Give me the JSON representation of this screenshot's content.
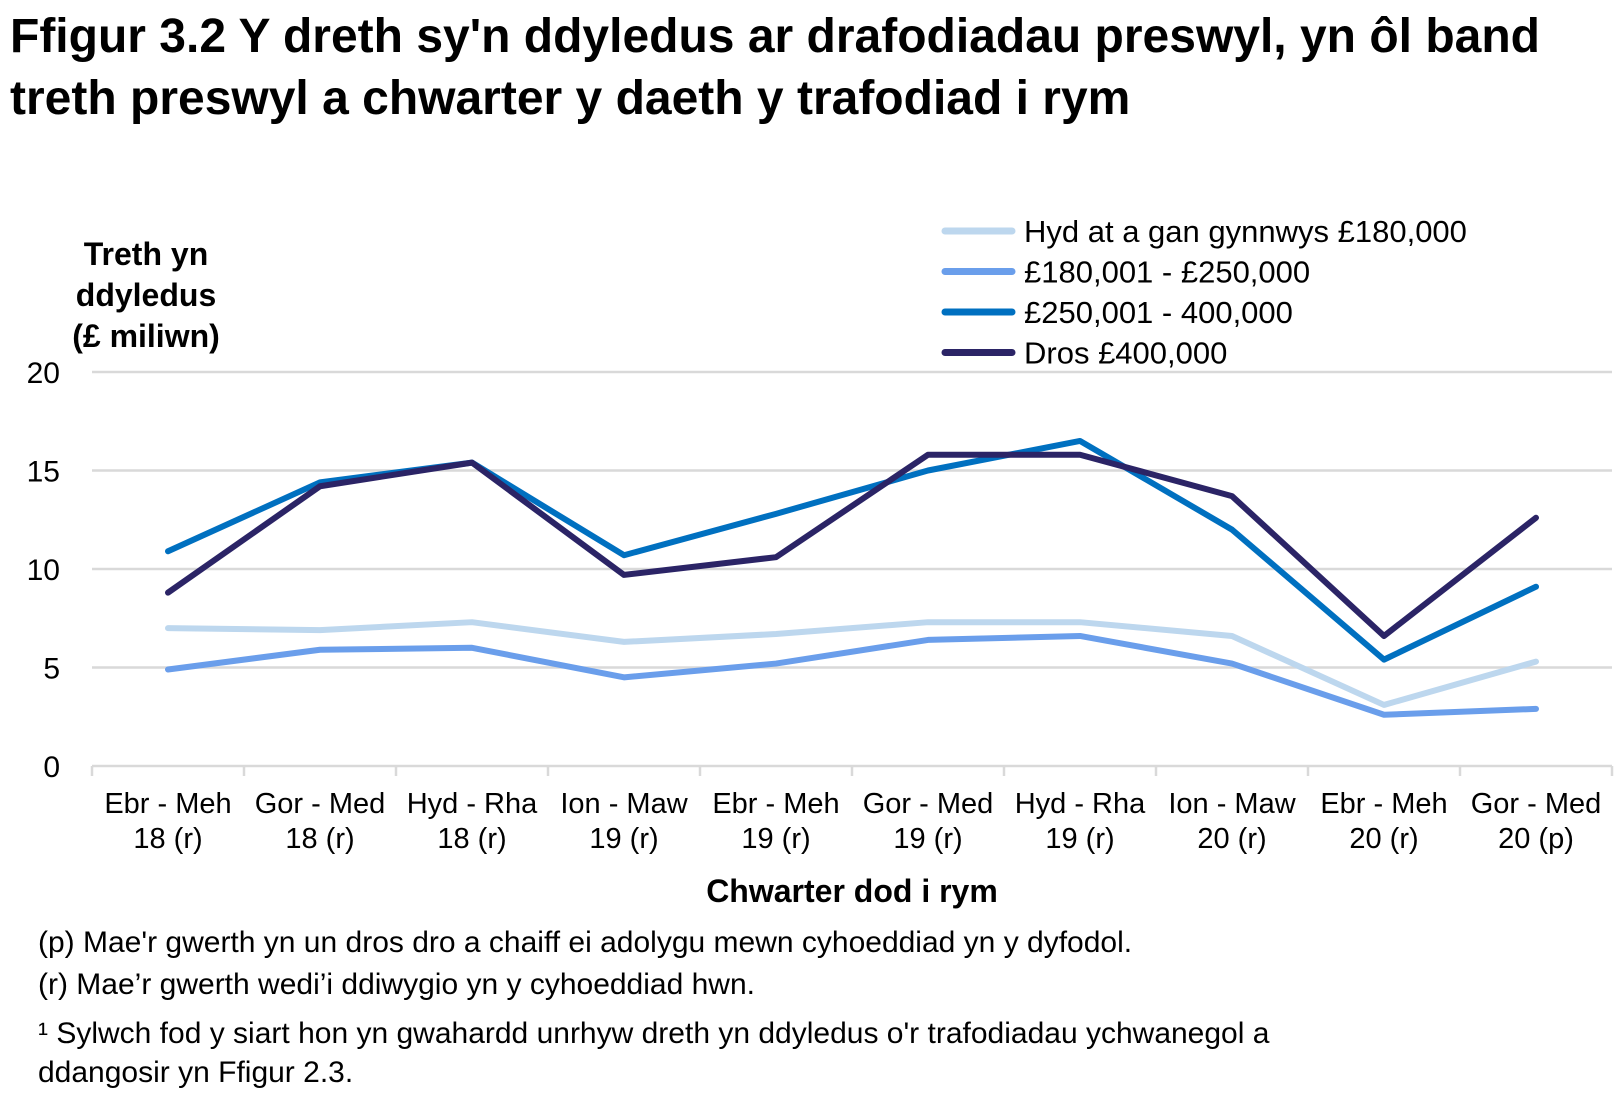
{
  "title": "Ffigur 3.2  Y dreth sy'n ddyledus ar drafodiadau preswyl, yn ôl band treth preswyl a chwarter y daeth y trafodiad i rym",
  "chart_data": {
    "type": "line",
    "ylabel": [
      "Treth yn",
      "ddyledus",
      "(£ miliwn)"
    ],
    "xlabel": "Chwarter dod i rym",
    "ylim": [
      0,
      20
    ],
    "yticks": [
      0,
      5,
      10,
      15,
      20
    ],
    "grid": true,
    "legend_position": "top-right",
    "categories": [
      [
        "Ebr - Meh",
        "18 (r)"
      ],
      [
        "Gor - Med",
        "18 (r)"
      ],
      [
        "Hyd - Rha",
        "18 (r)"
      ],
      [
        "Ion - Maw",
        "19 (r)"
      ],
      [
        "Ebr - Meh",
        "19 (r)"
      ],
      [
        "Gor - Med",
        "19 (r)"
      ],
      [
        "Hyd - Rha",
        "19 (r)"
      ],
      [
        "Ion - Maw",
        "20 (r)"
      ],
      [
        "Ebr - Meh",
        "20 (r)"
      ],
      [
        "Gor - Med",
        "20 (p)"
      ]
    ],
    "series": [
      {
        "name": "Hyd at a gan gynnwys £180,000",
        "color": "#BDD7EE",
        "values": [
          7.0,
          6.9,
          7.3,
          6.3,
          6.7,
          7.3,
          7.3,
          6.6,
          3.1,
          5.3
        ]
      },
      {
        "name": "£180,001 - £250,000",
        "color": "#6A9EEB",
        "values": [
          4.9,
          5.9,
          6.0,
          4.5,
          5.2,
          6.4,
          6.6,
          5.2,
          2.6,
          2.9
        ]
      },
      {
        "name": "£250,001 - 400,000",
        "color": "#0070C0",
        "values": [
          10.9,
          14.4,
          15.4,
          10.7,
          12.8,
          15.0,
          16.5,
          12.0,
          5.4,
          9.1
        ]
      },
      {
        "name": "Dros £400,000",
        "color": "#2B2466",
        "values": [
          8.8,
          14.2,
          15.4,
          9.7,
          10.6,
          15.8,
          15.8,
          13.7,
          6.6,
          12.6
        ]
      }
    ]
  },
  "notes": [
    "(p) Mae'r gwerth yn un dros dro a chaiff ei adolygu mewn  cyhoeddiad yn y dyfodol.",
    "(r) Mae’r gwerth wedi’i ddiwygio yn y cyhoeddiad hwn.",
    "¹ Sylwch fod y siart hon yn gwahardd  unrhyw dreth yn ddyledus o'r trafodiadau  ychwanegol a",
    "ddangosir yn Ffigur 2.3."
  ]
}
